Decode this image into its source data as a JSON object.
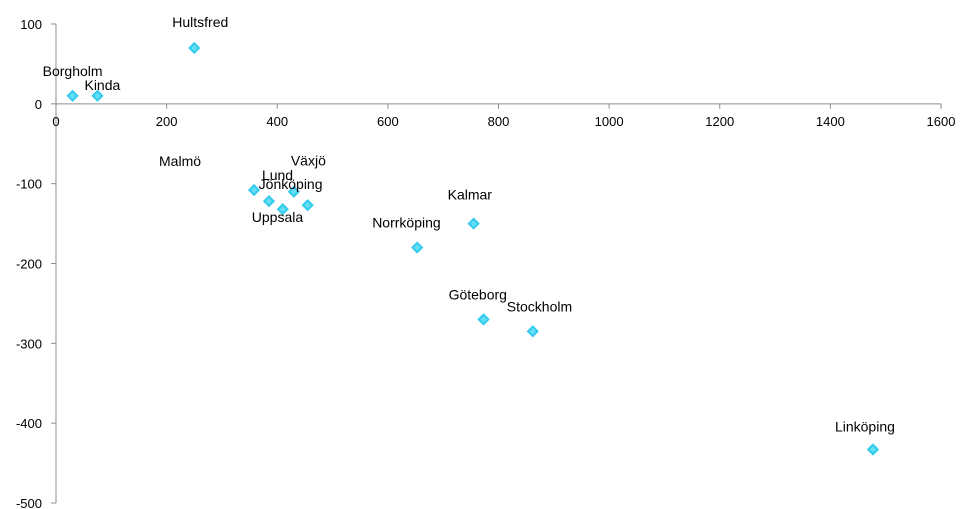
{
  "chart_data": {
    "type": "scatter",
    "title": "",
    "xlabel": "",
    "ylabel": "",
    "xlim": [
      0,
      1600
    ],
    "ylim": [
      -500,
      100
    ],
    "xticks": [
      "0",
      "200",
      "400",
      "600",
      "800",
      "1000",
      "1200",
      "1400",
      "1600"
    ],
    "yticks": [
      "100",
      "0",
      "-100",
      "-200",
      "-300",
      "-400",
      "-500"
    ],
    "grid": false,
    "marker_color": "#33ccee",
    "points": [
      {
        "label": "Borgholm",
        "x": 30,
        "y": 10
      },
      {
        "label": "Kinda",
        "x": 75,
        "y": 10
      },
      {
        "label": "Hultsfred",
        "x": 250,
        "y": 70
      },
      {
        "label": "Malmö",
        "x": 358,
        "y": -108
      },
      {
        "label": "Lund",
        "x": 385,
        "y": -122
      },
      {
        "label": "Växjö",
        "x": 430,
        "y": -110
      },
      {
        "label": "Uppsala",
        "x": 410,
        "y": -132
      },
      {
        "label": "Jönköping",
        "x": 455,
        "y": -127
      },
      {
        "label": "Norrköping",
        "x": 653,
        "y": -180
      },
      {
        "label": "Kalmar",
        "x": 755,
        "y": -150
      },
      {
        "label": "Göteborg",
        "x": 773,
        "y": -270
      },
      {
        "label": "Stockholm",
        "x": 862,
        "y": -285
      },
      {
        "label": "Linköping",
        "x": 1477,
        "y": -433
      }
    ]
  }
}
